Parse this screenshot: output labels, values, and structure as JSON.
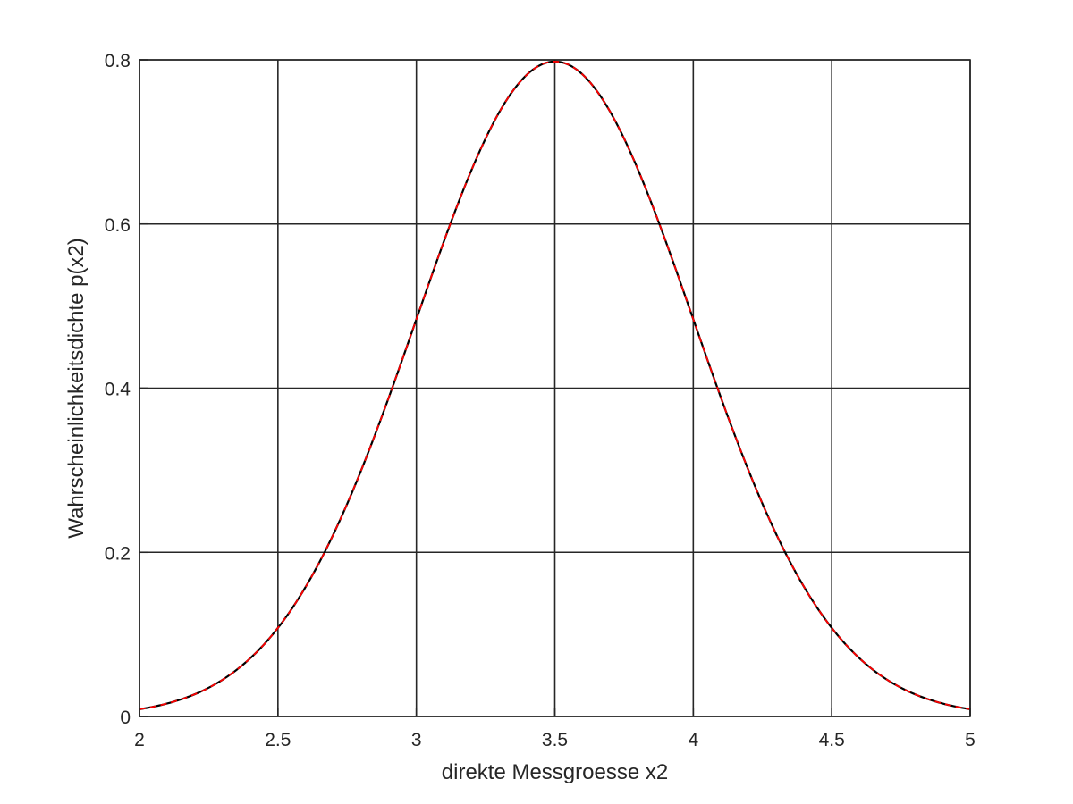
{
  "chart_data": {
    "type": "line",
    "title": "",
    "xlabel": "direkte Messgroesse x2",
    "ylabel": "Wahrscheinlichkeitsdichte p(x2)",
    "xlim": [
      2,
      5
    ],
    "ylim": [
      0,
      0.8
    ],
    "xticks": [
      2,
      2.5,
      3,
      3.5,
      4,
      4.5,
      5
    ],
    "xtick_labels": [
      "2",
      "2.5",
      "3",
      "3.5",
      "4",
      "4.5",
      "5"
    ],
    "yticks": [
      0,
      0.2,
      0.4,
      0.6,
      0.8
    ],
    "ytick_labels": [
      "0",
      "0.2",
      "0.4",
      "0.6",
      "0.8"
    ],
    "grid": true,
    "legend": "none",
    "series": [
      {
        "style": "solid",
        "color": "#000000",
        "x": [
          2.0,
          2.1,
          2.2,
          2.3,
          2.4,
          2.5,
          2.6,
          2.7,
          2.8,
          2.9,
          3.0,
          3.1,
          3.2,
          3.3,
          3.4,
          3.5,
          3.6,
          3.7,
          3.8,
          3.9,
          4.0,
          4.1,
          4.2,
          4.3,
          4.4,
          4.5,
          4.6,
          4.7,
          4.8,
          4.9,
          5.0
        ],
        "y": [
          0.009,
          0.018,
          0.034,
          0.06,
          0.099,
          0.108,
          0.157,
          0.23,
          0.335,
          0.421,
          0.484,
          0.579,
          0.666,
          0.737,
          0.782,
          0.798,
          0.782,
          0.737,
          0.666,
          0.579,
          0.484,
          0.421,
          0.335,
          0.23,
          0.157,
          0.108,
          0.061,
          0.034,
          0.018,
          0.009,
          0.009
        ]
      },
      {
        "style": "dashed",
        "color": "#ff0000",
        "x": [
          2.0,
          2.1,
          2.2,
          2.3,
          2.4,
          2.5,
          2.6,
          2.7,
          2.8,
          2.9,
          3.0,
          3.1,
          3.2,
          3.3,
          3.4,
          3.5,
          3.6,
          3.7,
          3.8,
          3.9,
          4.0,
          4.1,
          4.2,
          4.3,
          4.4,
          4.5,
          4.6,
          4.7,
          4.8,
          4.9,
          5.0
        ],
        "y": [
          0.009,
          0.018,
          0.034,
          0.06,
          0.099,
          0.108,
          0.157,
          0.23,
          0.335,
          0.421,
          0.484,
          0.579,
          0.666,
          0.737,
          0.782,
          0.798,
          0.782,
          0.737,
          0.666,
          0.579,
          0.484,
          0.421,
          0.335,
          0.23,
          0.157,
          0.108,
          0.061,
          0.034,
          0.018,
          0.009,
          0.009
        ]
      }
    ]
  }
}
